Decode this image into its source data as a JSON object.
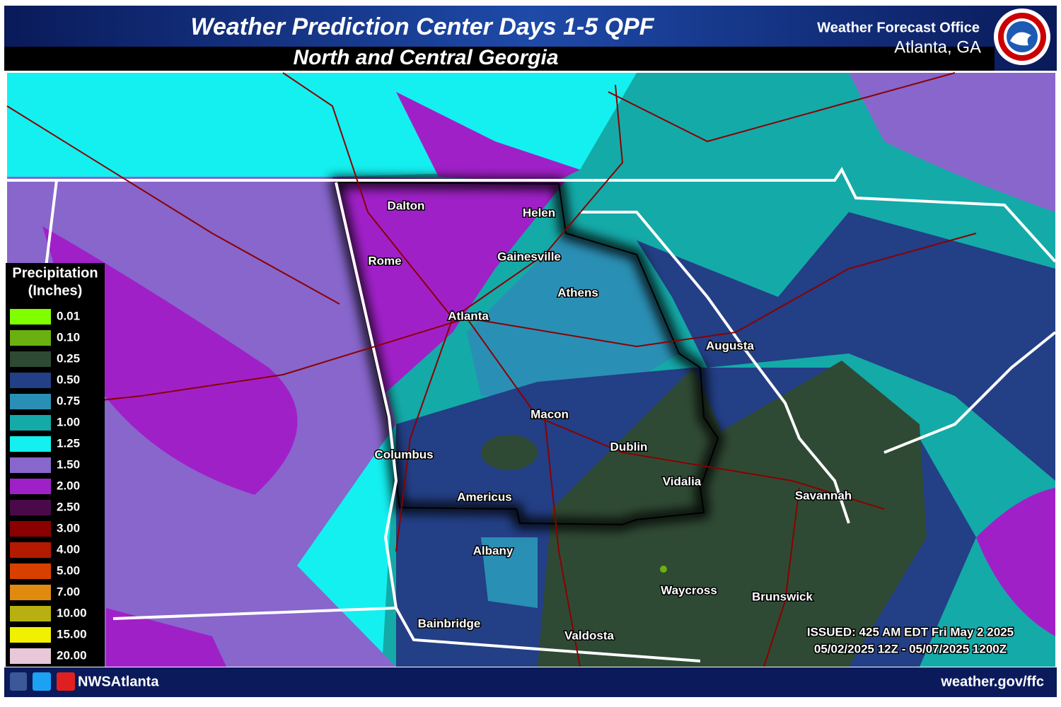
{
  "header": {
    "title": "Weather Prediction Center Days 1-5 QPF",
    "subtitle": "North and Central Georgia",
    "office": "Weather Forecast Office",
    "location": "Atlanta, GA"
  },
  "legend": {
    "title_line1": "Precipitation",
    "title_line2": "(Inches)",
    "items": [
      {
        "label": "0.01",
        "color": "#80ff00"
      },
      {
        "label": "0.10",
        "color": "#6ab010"
      },
      {
        "label": "0.25",
        "color": "#2f4a34"
      },
      {
        "label": "0.50",
        "color": "#233f86"
      },
      {
        "label": "0.75",
        "color": "#2a8fb4"
      },
      {
        "label": "1.00",
        "color": "#14aaa8"
      },
      {
        "label": "1.25",
        "color": "#14f0f0"
      },
      {
        "label": "1.50",
        "color": "#8866cc"
      },
      {
        "label": "2.00",
        "color": "#a020c8"
      },
      {
        "label": "2.50",
        "color": "#4a0a4a"
      },
      {
        "label": "3.00",
        "color": "#8a0000"
      },
      {
        "label": "4.00",
        "color": "#b31a00"
      },
      {
        "label": "5.00",
        "color": "#d84000"
      },
      {
        "label": "7.00",
        "color": "#e08a10"
      },
      {
        "label": "10.00",
        "color": "#b8b010"
      },
      {
        "label": "15.00",
        "color": "#f0f000"
      },
      {
        "label": "20.00",
        "color": "#e8c8d8"
      }
    ]
  },
  "cities": [
    "Dalton",
    "Helen",
    "Rome",
    "Gainesville",
    "Athens",
    "Atlanta",
    "Augusta",
    "Macon",
    "Dublin",
    "Columbus",
    "Vidalia",
    "Americus",
    "Savannah",
    "Albany",
    "Waycross",
    "Brunswick",
    "Bainbridge",
    "Valdosta"
  ],
  "issued": {
    "line1": "ISSUED: 425 AM EDT Fri May 2 2025",
    "line2": "05/02/2025 12Z - 05/07/2025 1200Z"
  },
  "footer": {
    "handle": "NWSAtlanta",
    "url": "weather.gov/ffc"
  }
}
